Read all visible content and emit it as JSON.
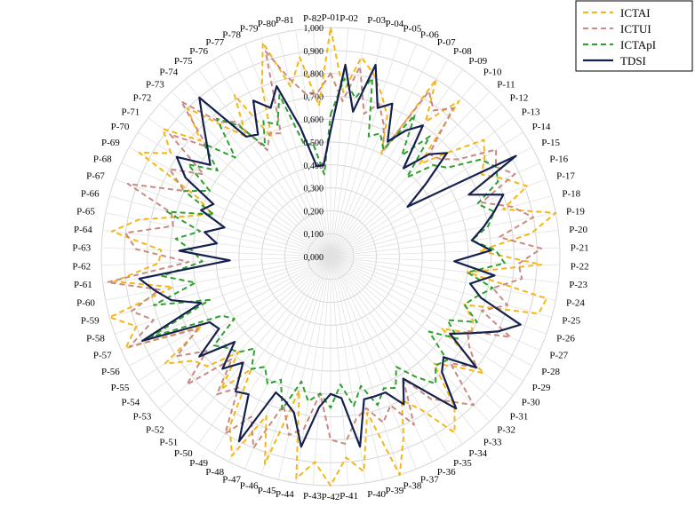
{
  "chart_data": {
    "type": "radar",
    "categories": [
      "P-01",
      "P-02",
      "P-03",
      "P-04",
      "P-05",
      "P-06",
      "P-07",
      "P-08",
      "P-09",
      "P-10",
      "P-11",
      "P-12",
      "P-13",
      "P-14",
      "P-15",
      "P-16",
      "P-17",
      "P-18",
      "P-19",
      "P-20",
      "P-21",
      "P-22",
      "P-23",
      "P-24",
      "P-25",
      "P-26",
      "P-27",
      "P-28",
      "P-29",
      "P-30",
      "P-31",
      "P-32",
      "P-33",
      "P-34",
      "P-35",
      "P-36",
      "P-37",
      "P-38",
      "P-39",
      "P-40",
      "P-41",
      "P-42",
      "P-43",
      "P-44",
      "P-45",
      "P-46",
      "P-47",
      "P-48",
      "P-49",
      "P-50",
      "P-51",
      "P-52",
      "P-53",
      "P-54",
      "P-55",
      "P-56",
      "P-57",
      "P-58",
      "P-59",
      "P-60",
      "P-61",
      "P-62",
      "P-63",
      "P-64",
      "P-65",
      "P-66",
      "P-67",
      "P-68",
      "P-69",
      "P-70",
      "P-71",
      "P-72",
      "P-73",
      "P-74",
      "P-75",
      "P-76",
      "P-77",
      "P-78",
      "P-79",
      "P-80",
      "P-81",
      "P-82"
    ],
    "rlim": [
      0,
      1
    ],
    "rticks": [
      "0,000",
      "0,100",
      "0,200",
      "0,300",
      "0,400",
      "0,500",
      "0,600",
      "0,700",
      "0,800",
      "0,900",
      "1,000"
    ],
    "grid": true,
    "legend_position": "top-right",
    "series": [
      {
        "name": "ICTAI",
        "color": "#f5b616",
        "dash": "dashed",
        "values": [
          1.0,
          0.72,
          0.88,
          0.82,
          0.74,
          0.66,
          0.5,
          0.9,
          0.72,
          0.88,
          0.56,
          0.68,
          0.84,
          0.8,
          0.75,
          0.83,
          0.91,
          0.78,
          1.0,
          0.88,
          0.65,
          0.92,
          0.6,
          0.96,
          0.94,
          0.62,
          0.68,
          0.7,
          0.58,
          0.84,
          0.72,
          0.65,
          0.85,
          0.94,
          0.78,
          0.7,
          0.85,
          1.0,
          0.7,
          0.95,
          0.88,
          1.0,
          0.9,
          0.98,
          0.6,
          0.95,
          0.75,
          0.97,
          0.86,
          0.6,
          0.75,
          0.58,
          0.72,
          0.75,
          0.86,
          0.64,
          0.98,
          0.9,
          1.0,
          0.7,
          0.95,
          0.75,
          0.74,
          0.96,
          0.85,
          0.66,
          0.55,
          0.64,
          0.95,
          0.83,
          0.92,
          0.76,
          0.9,
          0.74,
          0.64,
          0.82,
          0.58,
          0.8,
          0.98,
          0.76,
          0.88,
          0.66
        ]
      },
      {
        "name": "ICTUI",
        "color": "#c98a84",
        "dash": "dashed",
        "values": [
          0.8,
          0.68,
          0.84,
          0.64,
          0.7,
          0.62,
          0.52,
          0.84,
          0.78,
          0.84,
          0.62,
          0.64,
          0.7,
          0.86,
          0.82,
          0.88,
          0.7,
          0.82,
          0.9,
          0.74,
          0.92,
          0.82,
          0.84,
          0.72,
          0.8,
          0.7,
          0.86,
          0.68,
          0.72,
          0.8,
          0.7,
          0.9,
          0.82,
          0.76,
          0.62,
          0.82,
          0.7,
          0.76,
          0.68,
          0.72,
          0.82,
          0.8,
          0.6,
          0.76,
          0.8,
          0.68,
          0.9,
          0.78,
          0.9,
          0.7,
          0.78,
          0.62,
          0.84,
          0.68,
          0.8,
          0.66,
          0.96,
          0.82,
          0.9,
          0.76,
          0.98,
          0.62,
          0.85,
          0.9,
          0.7,
          0.72,
          0.94,
          0.7,
          0.8,
          0.66,
          0.88,
          0.72,
          0.94,
          0.76,
          0.72,
          0.54,
          0.6,
          0.58,
          0.94,
          0.8,
          0.72,
          0.72
        ]
      },
      {
        "name": "ICTApI",
        "color": "#2ea02e",
        "dash": "dashed",
        "values": [
          0.62,
          0.78,
          0.7,
          0.8,
          0.55,
          0.58,
          0.52,
          0.72,
          0.54,
          0.68,
          0.48,
          0.6,
          0.64,
          0.78,
          0.82,
          0.8,
          0.68,
          0.74,
          0.7,
          0.62,
          0.72,
          0.76,
          0.6,
          0.72,
          0.66,
          0.62,
          0.7,
          0.58,
          0.66,
          0.54,
          0.68,
          0.66,
          0.72,
          0.64,
          0.56,
          0.64,
          0.62,
          0.68,
          0.58,
          0.66,
          0.56,
          0.66,
          0.6,
          0.64,
          0.56,
          0.7,
          0.58,
          0.62,
          0.56,
          0.6,
          0.52,
          0.58,
          0.6,
          0.64,
          0.5,
          0.54,
          0.86,
          0.56,
          0.8,
          0.6,
          0.74,
          0.56,
          0.6,
          0.68,
          0.58,
          0.74,
          0.54,
          0.7,
          0.6,
          0.74,
          0.62,
          0.74,
          0.6,
          0.78,
          0.7,
          0.56,
          0.66,
          0.62,
          0.74,
          0.5,
          0.5,
          0.36
        ]
      },
      {
        "name": "TDSI",
        "color": "#16204e",
        "dash": "solid",
        "values": [
          0.55,
          0.84,
          0.64,
          0.86,
          0.68,
          0.72,
          0.56,
          0.64,
          0.7,
          0.5,
          0.62,
          0.68,
          0.52,
          0.4,
          0.92,
          0.66,
          0.8,
          0.74,
          0.68,
          0.62,
          0.7,
          0.54,
          0.72,
          0.62,
          0.68,
          0.88,
          0.8,
          0.7,
          0.62,
          0.8,
          0.66,
          0.7,
          0.86,
          0.72,
          0.62,
          0.72,
          0.64,
          0.64,
          0.64,
          0.84,
          0.62,
          0.6,
          0.66,
          0.84,
          0.7,
          0.66,
          0.64,
          0.9,
          0.7,
          0.72,
          0.6,
          0.68,
          0.56,
          0.72,
          0.58,
          0.6,
          0.9,
          0.6,
          0.72,
          0.78,
          0.84,
          0.44,
          0.66,
          0.5,
          0.56,
          0.48,
          0.6,
          0.56,
          0.72,
          0.8,
          0.66,
          0.72,
          0.8,
          0.9,
          0.64,
          0.62,
          0.76,
          0.7,
          0.78,
          0.58,
          0.4,
          0.4
        ]
      }
    ]
  }
}
